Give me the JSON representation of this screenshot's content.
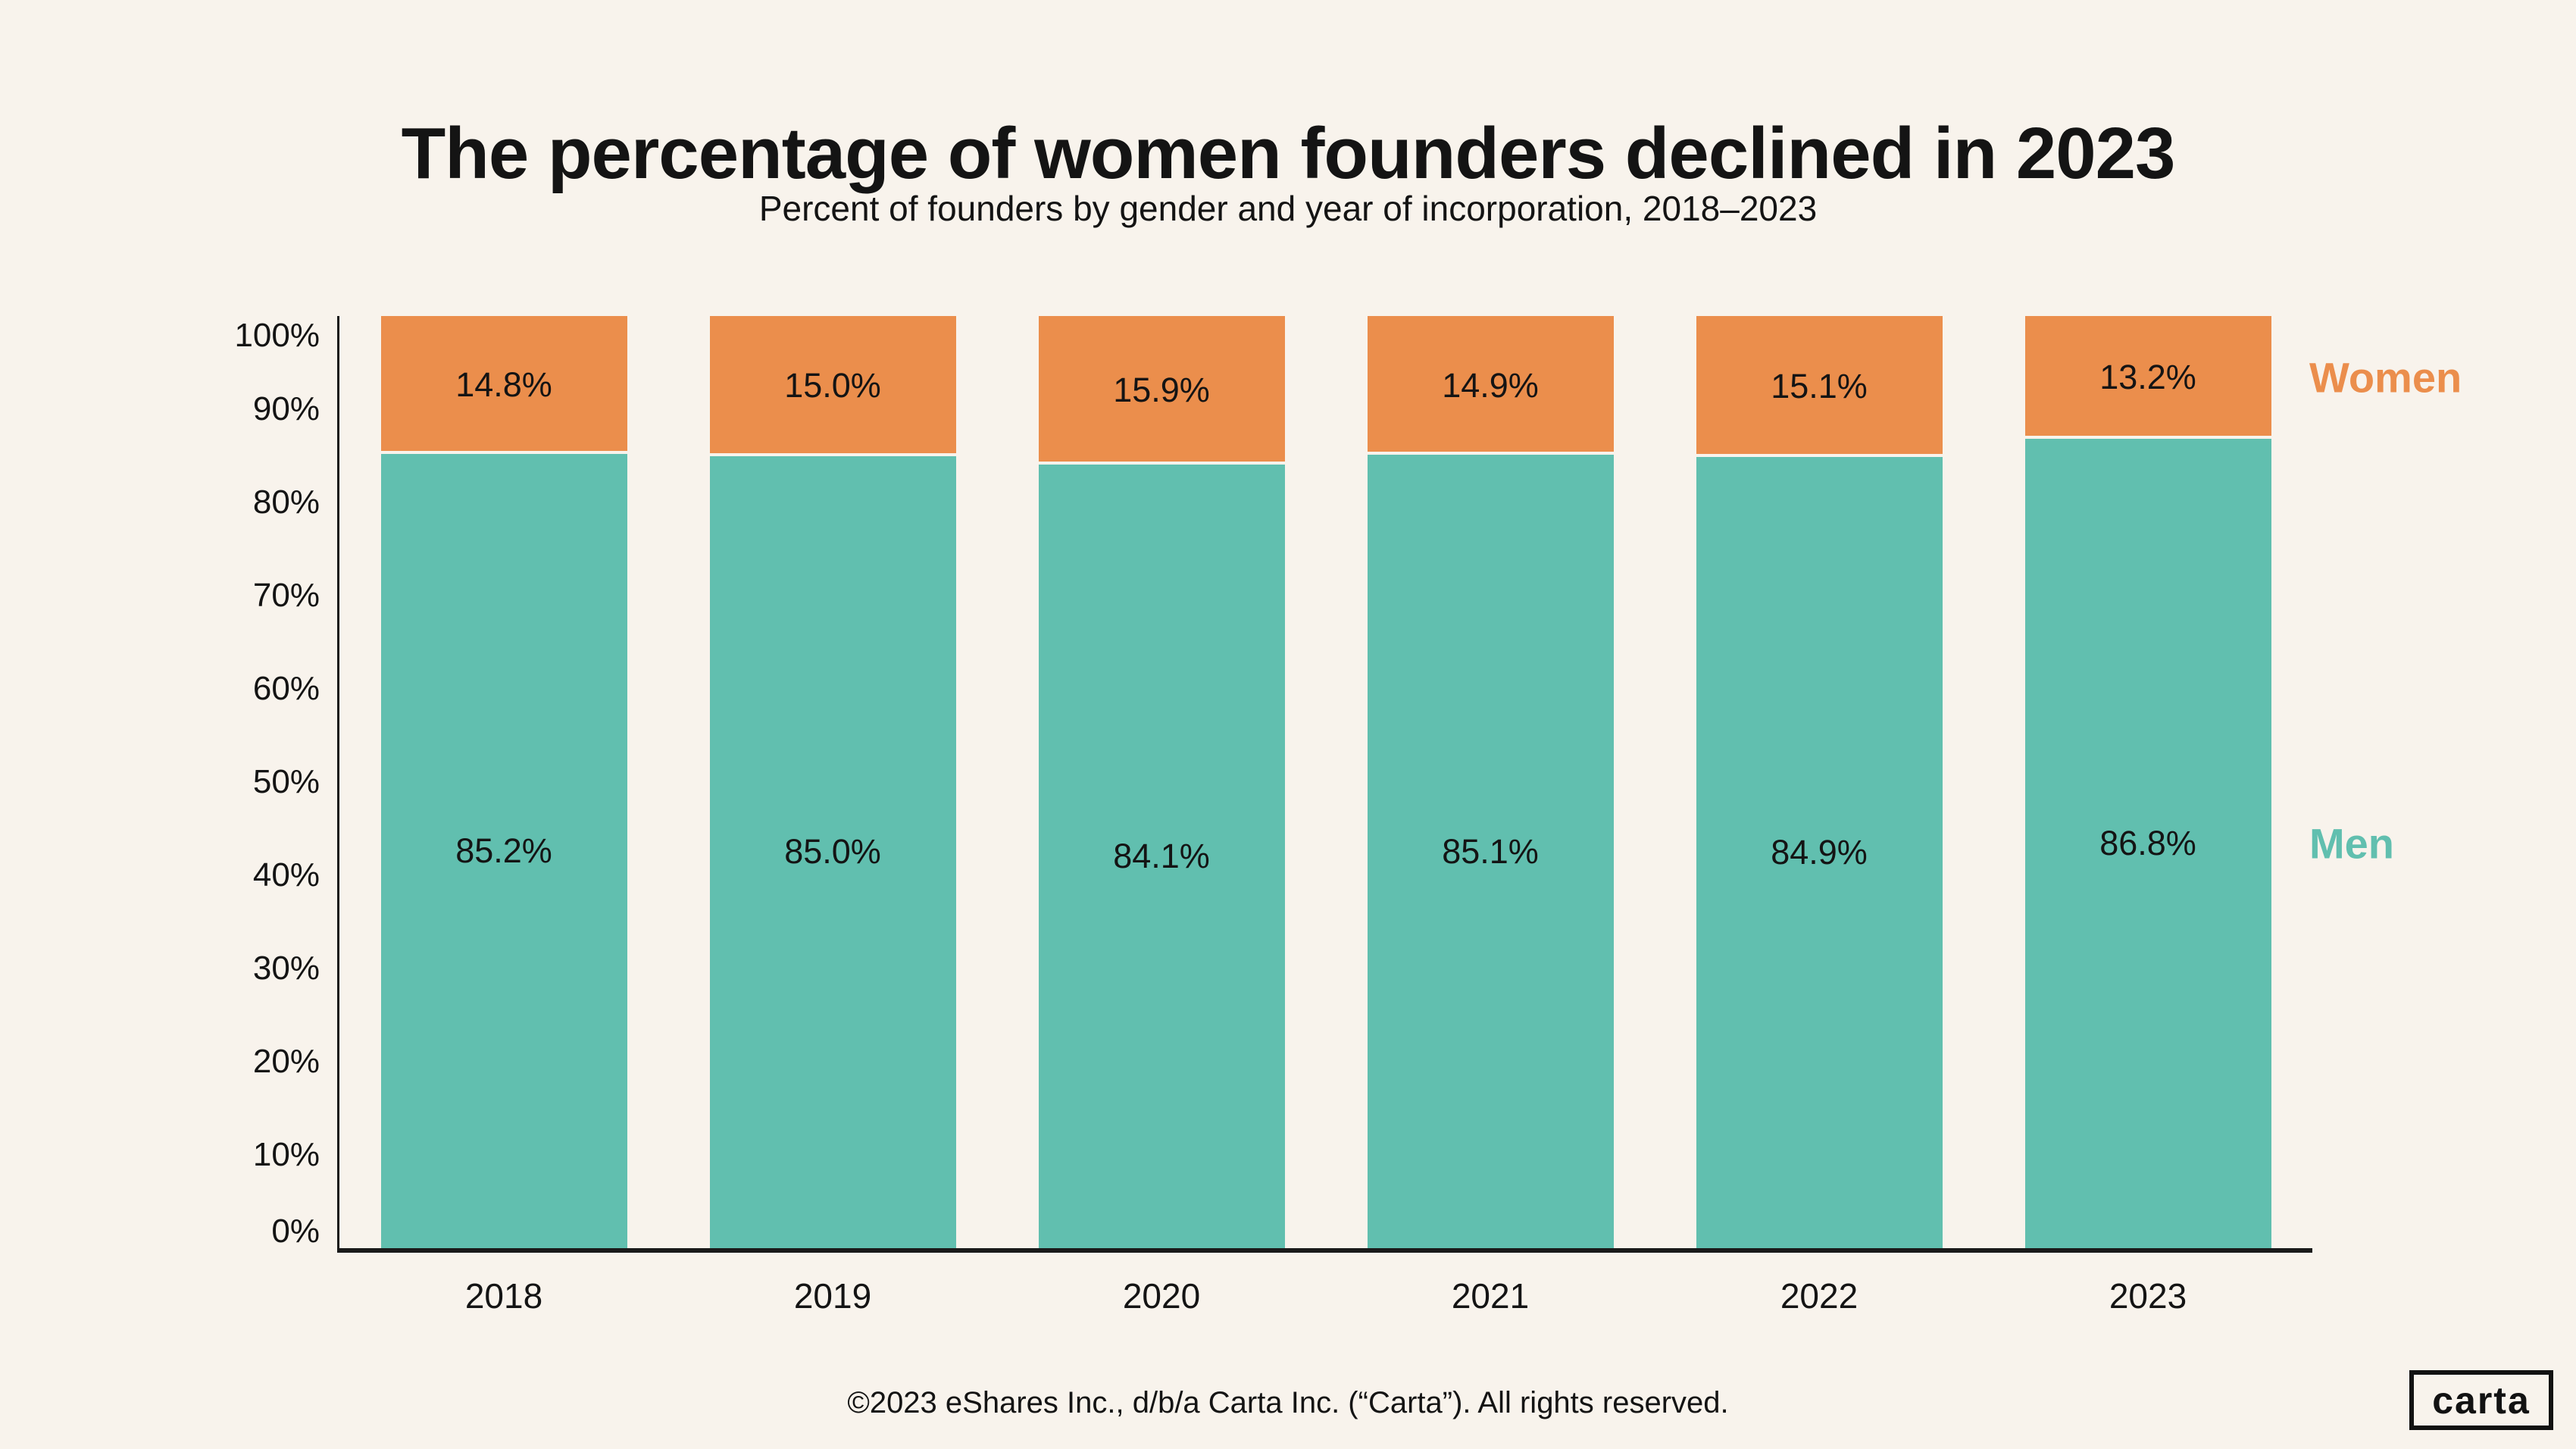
{
  "page": {
    "background": "#F8F3EC",
    "text_color": "#141414"
  },
  "header": {
    "title": "The percentage of women founders declined in 2023",
    "subtitle": "Percent of founders by gender and year of incorporation, 2018–2023"
  },
  "chart_data": {
    "type": "bar",
    "stacked": true,
    "percent_scale": true,
    "title": "The percentage of women founders declined in 2023",
    "subtitle": "Percent of founders by gender and year of incorporation, 2018–2023",
    "categories": [
      "2018",
      "2019",
      "2020",
      "2021",
      "2022",
      "2023"
    ],
    "series": [
      {
        "name": "Men",
        "color": "#61BFAF",
        "values": [
          85.2,
          85.0,
          84.1,
          85.1,
          84.9,
          86.8
        ],
        "labels": [
          "85.2%",
          "85.0%",
          "84.1%",
          "85.1%",
          "84.9%",
          "86.8%"
        ]
      },
      {
        "name": "Women",
        "color": "#EB8E4C",
        "values": [
          14.8,
          15.0,
          15.9,
          14.9,
          15.1,
          13.2
        ],
        "labels": [
          "14.8%",
          "15.0%",
          "15.9%",
          "14.9%",
          "15.1%",
          "13.2%"
        ]
      }
    ],
    "ylim": [
      0,
      100
    ],
    "ytick_labels": [
      "0%",
      "10%",
      "20%",
      "30%",
      "40%",
      "50%",
      "60%",
      "70%",
      "80%",
      "90%",
      "100%"
    ],
    "grid": false,
    "legend_position": "right"
  },
  "footer": {
    "copyright": "©2023 eShares Inc., d/b/a Carta Inc. (“Carta”). All rights reserved.",
    "logo_text": "carta"
  }
}
